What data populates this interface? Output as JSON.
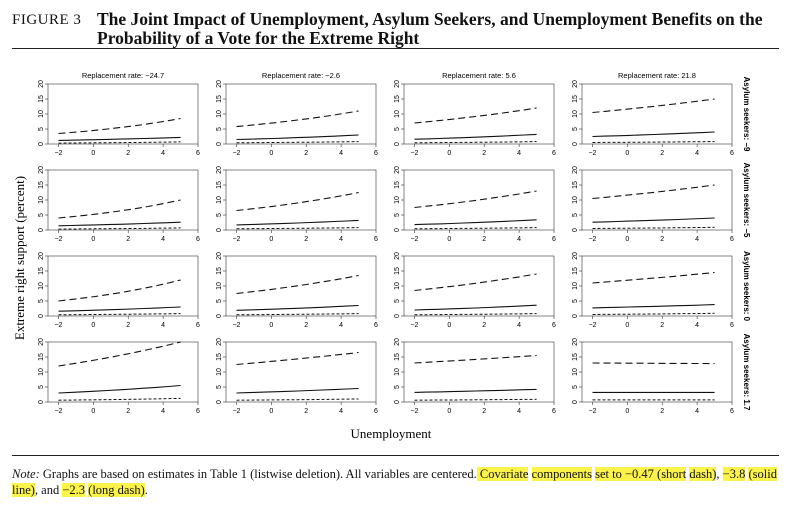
{
  "figure": {
    "label": "FIGURE 3",
    "title": "The Joint Impact of Unemployment, Asylum Seekers, and Unemployment Benefits on the Probability of a Vote for the Extreme Right"
  },
  "axes": {
    "ylabel": "Extreme right support (percent)",
    "xlabel": "Unemployment"
  },
  "note": {
    "prefix": "Note:",
    "part1": " Graphs are based on estimates in Table 1 (listwise deletion). All variables are centered.",
    "hl1": " Covariate",
    "sp1": " ",
    "hl2": "components",
    "sp2": " ",
    "hl3": "set to −0.47 (short",
    "sp3": " ",
    "hl4": "dash)",
    "sp4": ", ",
    "hl5": "−3.8",
    "sp5": " ",
    "hl6": "(solid line)",
    "sp6": ", and ",
    "hl7": "−2.3",
    "sp7": " ",
    "hl8": "(long dash)",
    "end": "."
  },
  "highlight_color": "#fbf34a",
  "chart_data": {
    "type": "line",
    "x": [
      -2,
      5
    ],
    "xticks": [
      -2,
      0,
      2,
      4,
      6
    ],
    "yticks": [
      0,
      5,
      10,
      15,
      20
    ],
    "xlim": [
      -2.6,
      6
    ],
    "ylim": [
      0,
      20
    ],
    "columns": [
      "Replacement rate: −24.7",
      "Replacement rate: −2.6",
      "Replacement rate: 5.6",
      "Replacement rate: 21.8"
    ],
    "rows": [
      "Asylum seekers: −9",
      "Asylum seekers: −5",
      "Asylum seekers: 0",
      "Asylum seekers: 1.7"
    ],
    "panels": [
      [
        {
          "long": [
            3.5,
            8.5
          ],
          "solid": [
            1.2,
            2.2
          ],
          "short": [
            0.3,
            0.7
          ]
        },
        {
          "long": [
            5.8,
            11.0
          ],
          "solid": [
            1.5,
            3.0
          ],
          "short": [
            0.4,
            0.8
          ]
        },
        {
          "long": [
            7.0,
            12.0
          ],
          "solid": [
            1.6,
            3.2
          ],
          "short": [
            0.4,
            0.8
          ]
        },
        {
          "long": [
            10.5,
            15.0
          ],
          "solid": [
            2.5,
            4.0
          ],
          "short": [
            0.5,
            0.8
          ]
        }
      ],
      [
        {
          "long": [
            4.0,
            10.0
          ],
          "solid": [
            1.4,
            2.6
          ],
          "short": [
            0.3,
            0.7
          ]
        },
        {
          "long": [
            6.5,
            12.5
          ],
          "solid": [
            1.7,
            3.2
          ],
          "short": [
            0.4,
            0.8
          ]
        },
        {
          "long": [
            7.5,
            13.0
          ],
          "solid": [
            1.8,
            3.4
          ],
          "short": [
            0.4,
            0.8
          ]
        },
        {
          "long": [
            10.5,
            15.0
          ],
          "solid": [
            2.6,
            4.0
          ],
          "short": [
            0.5,
            0.9
          ]
        }
      ],
      [
        {
          "long": [
            5.0,
            12.0
          ],
          "solid": [
            1.6,
            3.0
          ],
          "short": [
            0.4,
            0.8
          ]
        },
        {
          "long": [
            7.5,
            13.5
          ],
          "solid": [
            1.9,
            3.5
          ],
          "short": [
            0.4,
            0.8
          ]
        },
        {
          "long": [
            8.5,
            14.0
          ],
          "solid": [
            2.0,
            3.6
          ],
          "short": [
            0.4,
            0.8
          ]
        },
        {
          "long": [
            11.0,
            14.5
          ],
          "solid": [
            2.7,
            3.8
          ],
          "short": [
            0.5,
            0.9
          ]
        }
      ],
      [
        {
          "long": [
            12.0,
            20.0
          ],
          "solid": [
            3.0,
            5.5
          ],
          "short": [
            0.6,
            1.2
          ]
        },
        {
          "long": [
            12.5,
            16.5
          ],
          "solid": [
            3.0,
            4.5
          ],
          "short": [
            0.6,
            1.0
          ]
        },
        {
          "long": [
            13.0,
            15.5
          ],
          "solid": [
            3.2,
            4.2
          ],
          "short": [
            0.6,
            0.9
          ]
        },
        {
          "long": [
            13.0,
            12.8
          ],
          "solid": [
            3.2,
            3.2
          ],
          "short": [
            0.7,
            0.7
          ]
        }
      ]
    ]
  }
}
